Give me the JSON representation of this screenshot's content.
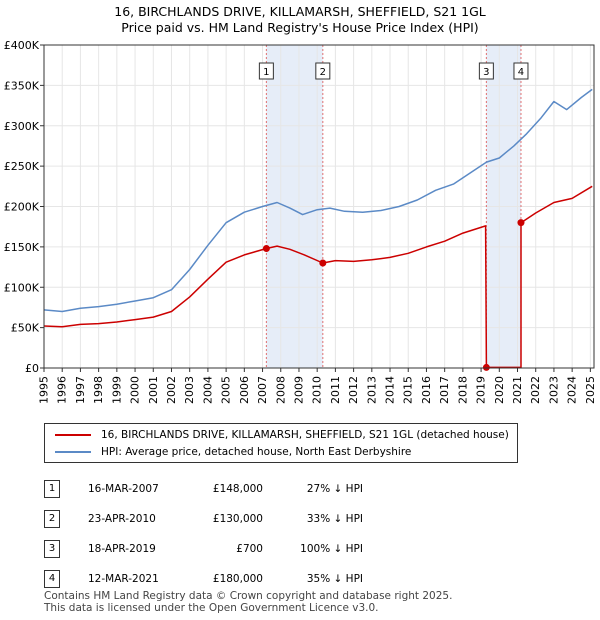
{
  "title": {
    "line1": "16, BIRCHLANDS DRIVE, KILLAMARSH, SHEFFIELD, S21 1GL",
    "line2": "Price paid vs. HM Land Registry's House Price Index (HPI)"
  },
  "colors": {
    "property": "#cc0000",
    "hpi": "#5b8ac6",
    "shade": "#dce6f5"
  },
  "legend": {
    "property_label": "16, BIRCHLANDS DRIVE, KILLAMARSH, SHEFFIELD, S21 1GL (detached house)",
    "hpi_label": "HPI: Average price, detached house, North East Derbyshire"
  },
  "sales": [
    {
      "num": "1",
      "date": "16-MAR-2007",
      "price": "£148,000",
      "hpi": "27% ↓ HPI"
    },
    {
      "num": "2",
      "date": "23-APR-2010",
      "price": "£130,000",
      "hpi": "33% ↓ HPI"
    },
    {
      "num": "3",
      "date": "18-APR-2019",
      "price": "£700",
      "hpi": "100% ↓ HPI"
    },
    {
      "num": "4",
      "date": "12-MAR-2021",
      "price": "£180,000",
      "hpi": "35% ↓ HPI"
    }
  ],
  "footer": {
    "line1": "Contains HM Land Registry data © Crown copyright and database right 2025.",
    "line2": "This data is licensed under the Open Government Licence v3.0."
  },
  "chart_data": {
    "type": "line",
    "xlim": [
      1995,
      2025.2
    ],
    "ylim": [
      0,
      400000
    ],
    "y_ticks": [
      {
        "value": 0,
        "label": "£0"
      },
      {
        "value": 50000,
        "label": "£50K"
      },
      {
        "value": 100000,
        "label": "£100K"
      },
      {
        "value": 150000,
        "label": "£150K"
      },
      {
        "value": 200000,
        "label": "£200K"
      },
      {
        "value": 250000,
        "label": "£250K"
      },
      {
        "value": 300000,
        "label": "£300K"
      },
      {
        "value": 350000,
        "label": "£350K"
      },
      {
        "value": 400000,
        "label": "£400K"
      }
    ],
    "x_ticks": [
      "1995",
      "1996",
      "1997",
      "1998",
      "1999",
      "2000",
      "2001",
      "2002",
      "2003",
      "2004",
      "2005",
      "2006",
      "2007",
      "2008",
      "2009",
      "2010",
      "2011",
      "2012",
      "2013",
      "2014",
      "2015",
      "2016",
      "2017",
      "2018",
      "2019",
      "2020",
      "2021",
      "2022",
      "2023",
      "2024",
      "2025"
    ],
    "shaded_ranges": [
      [
        2007.21,
        2010.31
      ],
      [
        2019.29,
        2021.19
      ]
    ],
    "markers": [
      {
        "label": "1",
        "x": 2007.21
      },
      {
        "label": "2",
        "x": 2010.31
      },
      {
        "label": "3",
        "x": 2019.29
      },
      {
        "label": "4",
        "x": 2021.19
      }
    ],
    "sale_points": [
      {
        "x": 2007.21,
        "y": 148000
      },
      {
        "x": 2010.31,
        "y": 130000
      },
      {
        "x": 2019.29,
        "y": 700
      },
      {
        "x": 2021.19,
        "y": 180000
      }
    ],
    "series": [
      {
        "name": "HPI: Average price, detached house, North East Derbyshire",
        "points": [
          [
            1995,
            72000
          ],
          [
            1996,
            70000
          ],
          [
            1997,
            74000
          ],
          [
            1998,
            76000
          ],
          [
            1999,
            79000
          ],
          [
            2000,
            83000
          ],
          [
            2001,
            87000
          ],
          [
            2002,
            97000
          ],
          [
            2003,
            122000
          ],
          [
            2004,
            152000
          ],
          [
            2005,
            180000
          ],
          [
            2006,
            193000
          ],
          [
            2007,
            200000
          ],
          [
            2007.8,
            205000
          ],
          [
            2008.5,
            198000
          ],
          [
            2009.2,
            190000
          ],
          [
            2010,
            196000
          ],
          [
            2010.7,
            198000
          ],
          [
            2011.5,
            194000
          ],
          [
            2012.5,
            193000
          ],
          [
            2013.5,
            195000
          ],
          [
            2014.5,
            200000
          ],
          [
            2015.5,
            208000
          ],
          [
            2016.5,
            220000
          ],
          [
            2017.5,
            228000
          ],
          [
            2018.5,
            243000
          ],
          [
            2019.3,
            255000
          ],
          [
            2020,
            260000
          ],
          [
            2020.8,
            275000
          ],
          [
            2021.5,
            290000
          ],
          [
            2022.3,
            310000
          ],
          [
            2023,
            330000
          ],
          [
            2023.7,
            320000
          ],
          [
            2024.5,
            335000
          ],
          [
            2025.1,
            345000
          ]
        ]
      },
      {
        "name": "16, BIRCHLANDS DRIVE, KILLAMARSH, SHEFFIELD, S21 1GL (detached house)",
        "points": [
          [
            1995,
            52000
          ],
          [
            1996,
            51000
          ],
          [
            1997,
            54000
          ],
          [
            1998,
            55000
          ],
          [
            1999,
            57000
          ],
          [
            2000,
            60000
          ],
          [
            2001,
            63000
          ],
          [
            2002,
            70000
          ],
          [
            2003,
            88000
          ],
          [
            2004,
            110000
          ],
          [
            2005,
            131000
          ],
          [
            2006,
            140000
          ],
          [
            2007.21,
            148000
          ],
          [
            2007.8,
            151000
          ],
          [
            2008.5,
            147000
          ],
          [
            2009.3,
            140000
          ],
          [
            2010.31,
            130000
          ],
          [
            2011,
            133000
          ],
          [
            2012,
            132000
          ],
          [
            2013,
            134000
          ],
          [
            2014,
            137000
          ],
          [
            2015,
            142000
          ],
          [
            2016,
            150000
          ],
          [
            2017,
            157000
          ],
          [
            2018,
            167000
          ],
          [
            2019.25,
            176000
          ],
          [
            2019.29,
            700
          ],
          [
            2021.19,
            700
          ],
          [
            2021.19,
            180000
          ],
          [
            2022,
            192000
          ],
          [
            2023,
            205000
          ],
          [
            2024,
            210000
          ],
          [
            2025.1,
            225000
          ]
        ]
      }
    ]
  }
}
